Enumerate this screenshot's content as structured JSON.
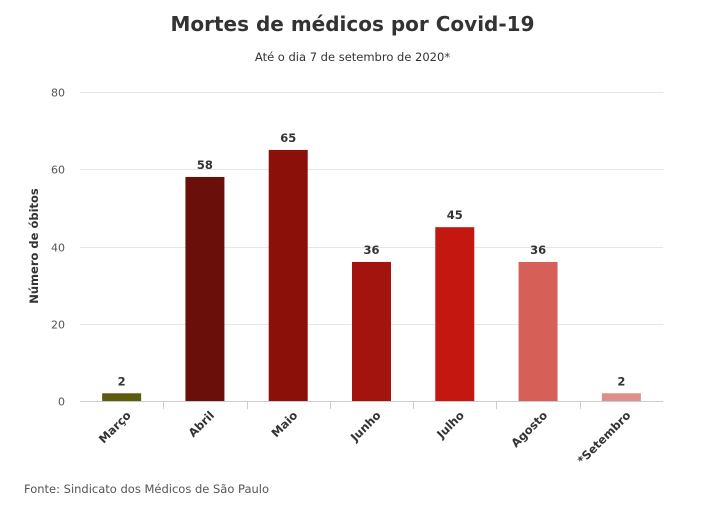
{
  "chart_data": {
    "type": "bar",
    "title": "Mortes de médicos por Covid-19",
    "subtitle": "Até o dia 7 de setembro de 2020*",
    "ylabel": "Número de óbitos",
    "xlabel": "",
    "categories": [
      "Março",
      "Abril",
      "Maio",
      "Junho",
      "Julho",
      "Agosto",
      "*Setembro"
    ],
    "values": [
      2,
      58,
      65,
      36,
      45,
      36,
      2
    ],
    "colors": [
      "#5c5c0f",
      "#6b0f0a",
      "#8b100a",
      "#a3140e",
      "#c4170f",
      "#d65f58",
      "#e08e8a"
    ],
    "ylim": [
      0,
      80
    ],
    "yticks": [
      0,
      20,
      40,
      60,
      80
    ],
    "grid": true,
    "data_labels": true
  },
  "source": "Fonte: Sindicato dos Médicos de São Paulo"
}
